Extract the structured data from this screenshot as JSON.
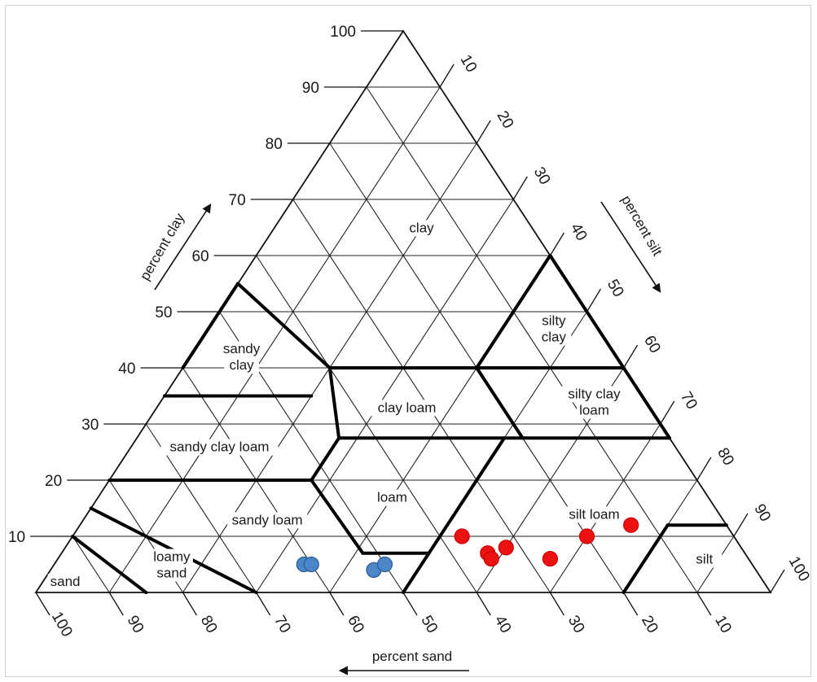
{
  "chart_data": {
    "type": "scatter",
    "subtype": "ternary soil texture triangle",
    "axes": {
      "clay": {
        "label": "percent clay",
        "ticks": [
          10,
          20,
          30,
          40,
          50,
          60,
          70,
          80,
          90,
          100
        ]
      },
      "silt": {
        "label": "percent silt",
        "ticks": [
          10,
          20,
          30,
          40,
          50,
          60,
          70,
          80,
          90,
          100
        ]
      },
      "sand": {
        "label": "percent sand",
        "ticks": [
          100,
          90,
          80,
          70,
          60,
          50,
          40,
          30,
          20,
          10
        ]
      }
    },
    "regions": [
      {
        "name": "clay",
        "label_lines": [
          "clay"
        ],
        "at": {
          "clay": 65,
          "silt": 20
        }
      },
      {
        "name": "sandy clay",
        "label_lines": [
          "sandy",
          "clay"
        ],
        "at": {
          "clay": 42,
          "silt": 7
        }
      },
      {
        "name": "silty clay",
        "label_lines": [
          "silty",
          "clay"
        ],
        "at": {
          "clay": 47,
          "silt": 47
        }
      },
      {
        "name": "silty clay loam",
        "label_lines": [
          "silty clay",
          "loam"
        ],
        "at": {
          "clay": 34,
          "silt": 59
        }
      },
      {
        "name": "clay loam",
        "label_lines": [
          "clay loam"
        ],
        "at": {
          "clay": 33,
          "silt": 34
        }
      },
      {
        "name": "sandy clay loam",
        "label_lines": [
          "sandy clay loam"
        ],
        "at": {
          "clay": 26,
          "silt": 12
        }
      },
      {
        "name": "loam",
        "label_lines": [
          "loam"
        ],
        "at": {
          "clay": 17,
          "silt": 40
        }
      },
      {
        "name": "sandy loam",
        "label_lines": [
          "sandy loam"
        ],
        "at": {
          "clay": 13,
          "silt": 25
        }
      },
      {
        "name": "silt loam",
        "label_lines": [
          "silt loam"
        ],
        "at": {
          "clay": 14,
          "silt": 69
        }
      },
      {
        "name": "loamy sand",
        "label_lines": [
          "loamy",
          "sand"
        ],
        "at": {
          "clay": 5,
          "silt": 16
        }
      },
      {
        "name": "sand",
        "label_lines": [
          "sand"
        ],
        "at": {
          "clay": 2,
          "silt": 3
        }
      },
      {
        "name": "silt",
        "label_lines": [
          "silt"
        ],
        "at": {
          "clay": 6,
          "silt": 88
        }
      }
    ],
    "series": [
      {
        "color": "#4a86c8",
        "points": [
          {
            "clay": 5,
            "silt": 34,
            "sand": 61
          },
          {
            "clay": 5,
            "silt": 35,
            "sand": 60
          },
          {
            "clay": 4,
            "silt": 44,
            "sand": 52
          },
          {
            "clay": 5,
            "silt": 45,
            "sand": 50
          }
        ]
      },
      {
        "color": "#ee1111",
        "points": [
          {
            "clay": 10,
            "silt": 53,
            "sand": 37
          },
          {
            "clay": 7,
            "silt": 58,
            "sand": 35
          },
          {
            "clay": 6,
            "silt": 59,
            "sand": 35
          },
          {
            "clay": 8,
            "silt": 60,
            "sand": 32
          },
          {
            "clay": 6,
            "silt": 67,
            "sand": 27
          },
          {
            "clay": 10,
            "silt": 70,
            "sand": 20
          },
          {
            "clay": 12,
            "silt": 75,
            "sand": 13
          }
        ]
      }
    ],
    "boundaries": [
      [
        {
          "clay": 55,
          "silt": 0
        },
        {
          "clay": 40,
          "silt": 0
        }
      ],
      [
        {
          "clay": 55,
          "silt": 0
        },
        {
          "clay": 40,
          "silt": 20
        }
      ],
      [
        {
          "clay": 40,
          "silt": 20
        },
        {
          "clay": 40,
          "silt": 40
        }
      ],
      [
        {
          "clay": 40,
          "silt": 40
        },
        {
          "clay": 60,
          "silt": 40
        }
      ],
      [
        {
          "clay": 40,
          "silt": 40
        },
        {
          "clay": 40,
          "silt": 60
        }
      ],
      [
        {
          "clay": 60,
          "silt": 40
        },
        {
          "clay": 40,
          "silt": 60
        }
      ],
      [
        {
          "clay": 35,
          "silt": 0
        },
        {
          "clay": 35,
          "silt": 20
        }
      ],
      [
        {
          "clay": 40,
          "silt": 20
        },
        {
          "clay": 27.5,
          "silt": 27.5
        }
      ],
      [
        {
          "clay": 27.5,
          "silt": 27.5
        },
        {
          "clay": 20,
          "silt": 27.5
        }
      ],
      [
        {
          "clay": 20,
          "silt": 27.5
        },
        {
          "clay": 20,
          "silt": 0
        }
      ],
      [
        {
          "clay": 20,
          "silt": 27.5
        },
        {
          "clay": 7,
          "silt": 41
        }
      ],
      [
        {
          "clay": 7,
          "silt": 41
        },
        {
          "clay": 7,
          "silt": 50
        }
      ],
      [
        {
          "clay": 7,
          "silt": 50
        },
        {
          "clay": 0,
          "silt": 50
        }
      ],
      [
        {
          "clay": 7,
          "silt": 50
        },
        {
          "clay": 27.5,
          "silt": 50
        }
      ],
      [
        {
          "clay": 27.5,
          "silt": 27.5
        },
        {
          "clay": 27.5,
          "silt": 72.5
        }
      ],
      [
        {
          "clay": 40,
          "silt": 40
        },
        {
          "clay": 27.5,
          "silt": 52.5
        }
      ],
      [
        {
          "clay": 40,
          "silt": 60
        },
        {
          "clay": 27.5,
          "silt": 72.5
        }
      ],
      [
        {
          "clay": 15,
          "silt": 0
        },
        {
          "clay": 0,
          "silt": 30
        }
      ],
      [
        {
          "clay": 10,
          "silt": 0
        },
        {
          "clay": 0,
          "silt": 15
        }
      ],
      [
        {
          "clay": 12,
          "silt": 80
        },
        {
          "clay": 12,
          "silt": 88
        }
      ],
      [
        {
          "clay": 12,
          "silt": 80
        },
        {
          "clay": 0,
          "silt": 80
        }
      ]
    ]
  }
}
